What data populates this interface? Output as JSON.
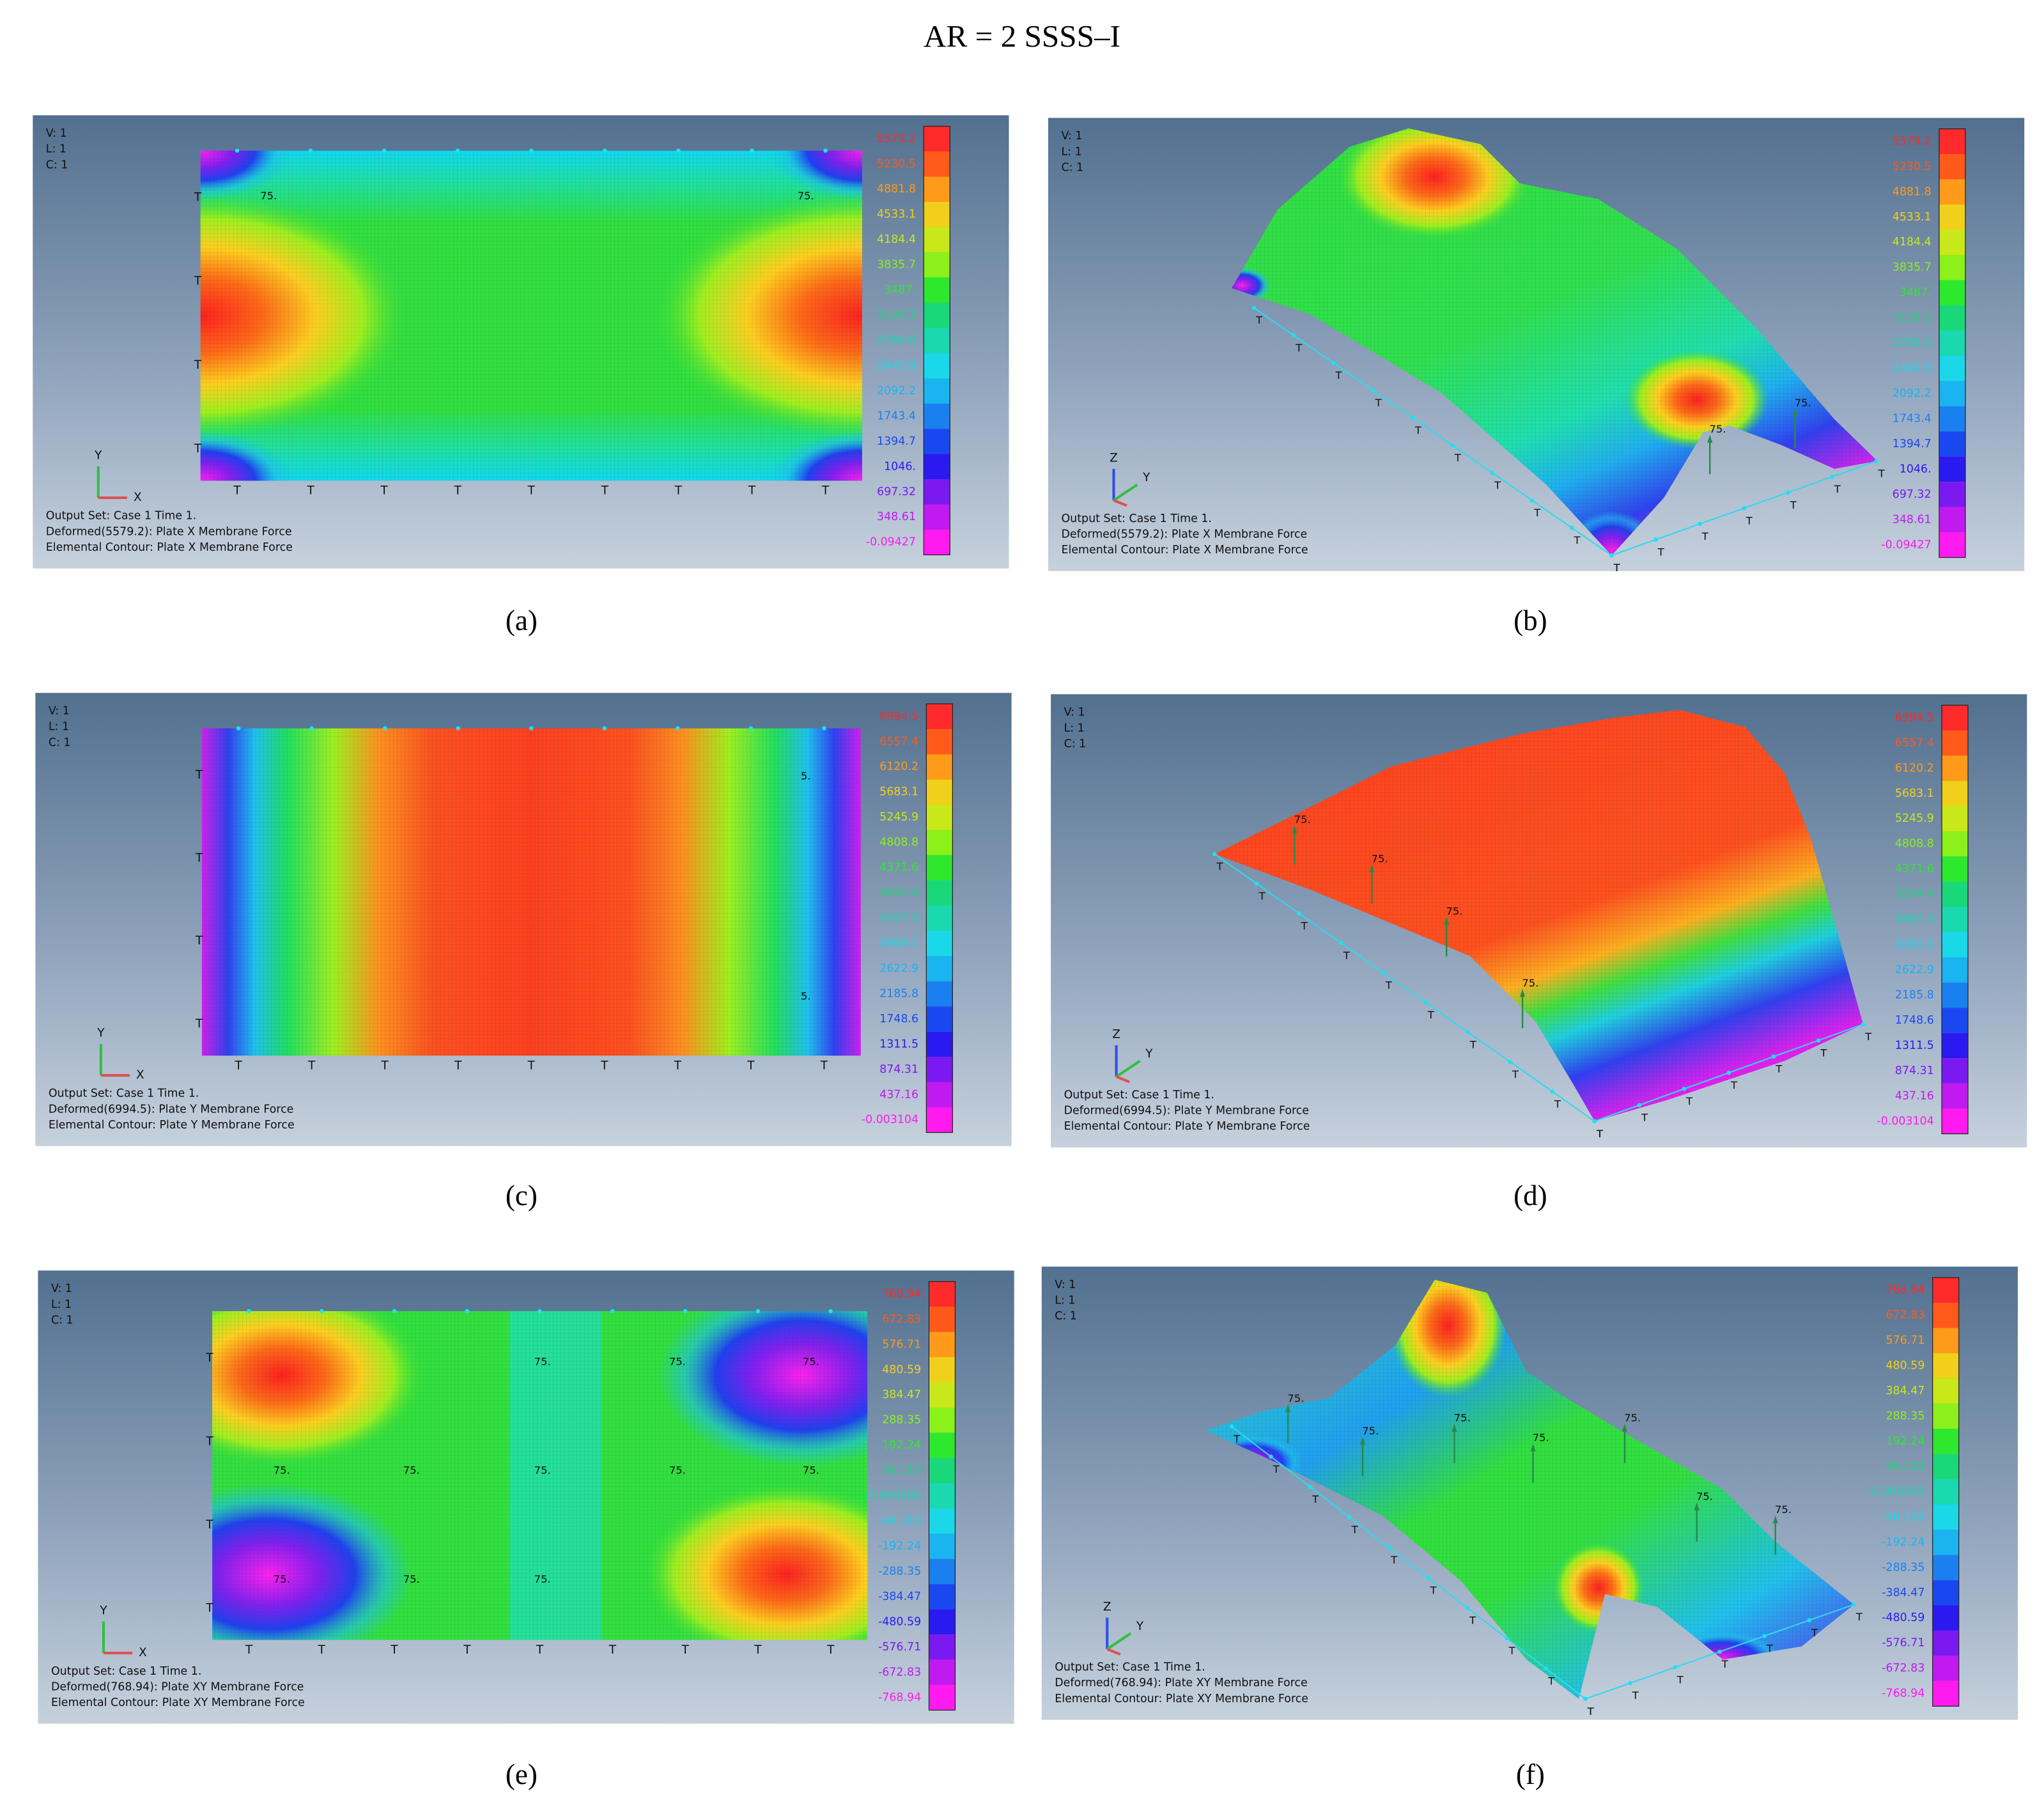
{
  "title": "AR = 2 SSSS–I",
  "panels": [
    {
      "caption": "(a)",
      "view_info": [
        "V: 1",
        "L: 1",
        "C: 1"
      ],
      "legend": [
        "5579.2",
        "5230.5",
        "4881.8",
        "4533.1",
        "4184.4",
        "3835.7",
        "3487.",
        "3138.3",
        "2789.6",
        "2440.9",
        "2092.2",
        "1743.4",
        "1394.7",
        "1046.",
        "697.32",
        "348.61",
        "-0.09427"
      ],
      "output_info": [
        "Output Set: Case 1 Time 1.",
        "Deformed(5579.2): Plate X Membrane Force",
        "Elemental Contour: Plate X Membrane Force"
      ],
      "axes": [
        "Y",
        "X"
      ],
      "constraint_label": "T",
      "load_label": "75."
    },
    {
      "caption": "(b)",
      "view_info": [
        "V: 1",
        "L: 1",
        "C: 1"
      ],
      "legend": [
        "5579.2",
        "5230.5",
        "4881.8",
        "4533.1",
        "4184.4",
        "3835.7",
        "3487.",
        "3138.3",
        "2789.6",
        "2440.9",
        "2092.2",
        "1743.4",
        "1394.7",
        "1046.",
        "697.32",
        "348.61",
        "-0.09427"
      ],
      "output_info": [
        "Output Set: Case 1 Time 1.",
        "Deformed(5579.2): Plate X Membrane Force",
        "Elemental Contour: Plate X Membrane Force"
      ],
      "axes": [
        "Z",
        "Y"
      ],
      "constraint_label": "T",
      "load_label": "75."
    },
    {
      "caption": "(c)",
      "view_info": [
        "V: 1",
        "L: 1",
        "C: 1"
      ],
      "legend": [
        "6994.5",
        "6557.4",
        "6120.2",
        "5683.1",
        "5245.9",
        "4808.8",
        "4371.6",
        "3934.4",
        "3497.3",
        "3060.1",
        "2622.9",
        "2185.8",
        "1748.6",
        "1311.5",
        "874.31",
        "437.16",
        "-0.003104"
      ],
      "output_info": [
        "Output Set: Case 1 Time 1.",
        "Deformed(6994.5): Plate Y Membrane Force",
        "Elemental Contour: Plate Y Membrane Force"
      ],
      "axes": [
        "Y",
        "X"
      ],
      "constraint_label": "T",
      "load_label": "5."
    },
    {
      "caption": "(d)",
      "view_info": [
        "V: 1",
        "L: 1",
        "C: 1"
      ],
      "legend": [
        "6994.5",
        "6557.4",
        "6120.2",
        "5683.1",
        "5245.9",
        "4808.8",
        "4371.6",
        "3934.4",
        "3497.3",
        "3060.1",
        "2622.9",
        "2185.8",
        "1748.6",
        "1311.5",
        "874.31",
        "437.16",
        "-0.003104"
      ],
      "output_info": [
        "Output Set: Case 1 Time 1.",
        "Deformed(6994.5): Plate Y Membrane Force",
        "Elemental Contour: Plate Y Membrane Force"
      ],
      "axes": [
        "Z",
        "Y"
      ],
      "constraint_label": "T",
      "load_label": "75."
    },
    {
      "caption": "(e)",
      "view_info": [
        "V: 1",
        "L: 1",
        "C: 1"
      ],
      "legend": [
        "768.94",
        "672.83",
        "576.71",
        "480.59",
        "384.47",
        "288.35",
        "192.24",
        "96.118",
        "-0.000202",
        "-96.118",
        "-192.24",
        "-288.35",
        "-384.47",
        "-480.59",
        "-576.71",
        "-672.83",
        "-768.94"
      ],
      "output_info": [
        "Output Set: Case 1 Time 1.",
        "Deformed(768.94): Plate XY Membrane Force",
        "Elemental Contour: Plate XY Membrane Force"
      ],
      "axes": [
        "Y",
        "X"
      ],
      "constraint_label": "T",
      "load_label": "75."
    },
    {
      "caption": "(f)",
      "view_info": [
        "V: 1",
        "L: 1",
        "C: 1"
      ],
      "legend": [
        "768.94",
        "672.83",
        "576.71",
        "480.59",
        "384.47",
        "288.35",
        "192.24",
        "96.118",
        "-0.000202",
        "-96.118",
        "-192.24",
        "-288.35",
        "-384.47",
        "-480.59",
        "-576.71",
        "-672.83",
        "-768.94"
      ],
      "output_info": [
        "Output Set: Case 1 Time 1.",
        "Deformed(768.94): Plate XY Membrane Force",
        "Elemental Contour: Plate XY Membrane Force"
      ],
      "axes": [
        "Z",
        "Y"
      ],
      "constraint_label": "T",
      "load_label": "75."
    }
  ]
}
